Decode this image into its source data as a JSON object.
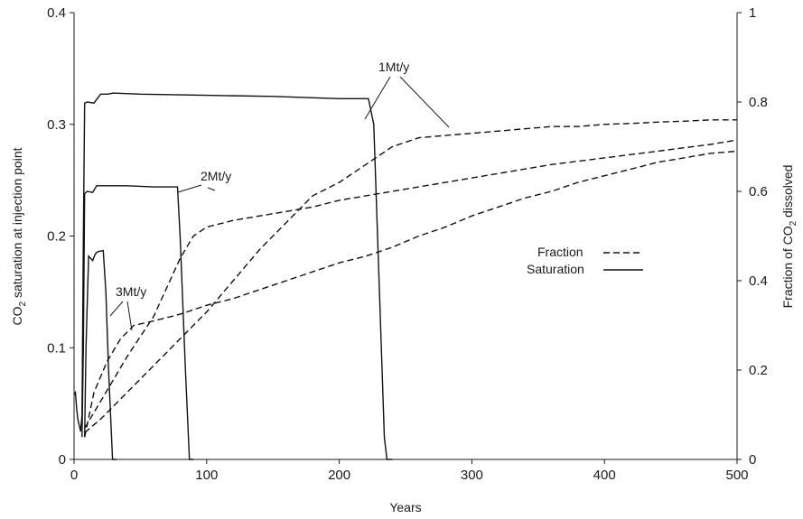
{
  "chart_data": {
    "type": "line",
    "xlabel": "Years",
    "ylabel_left": {
      "prefix": "CO",
      "sub": "2",
      "suffix": " saturation at injection point"
    },
    "ylabel_right": {
      "prefix": "Fraction of CO",
      "sub": "2",
      "suffix": " dissolved"
    },
    "xlim": [
      0,
      500
    ],
    "ylim_left": [
      0,
      0.4
    ],
    "ylim_right": [
      0,
      1
    ],
    "x_ticks": [
      "0",
      "100",
      "200",
      "300",
      "400",
      "500"
    ],
    "y_left_ticks": [
      "0",
      "0.1",
      "0.2",
      "0.3",
      "0.4"
    ],
    "y_right_ticks": [
      "0",
      "0.2",
      "0.4",
      "0.6",
      "0.8",
      "1"
    ],
    "grid": false,
    "legend": {
      "placement": "center-right",
      "entries": [
        {
          "label": "Fraction",
          "style": "dashed"
        },
        {
          "label": "Saturation",
          "style": "solid"
        }
      ]
    },
    "annotations": [
      {
        "text": "1Mt/y",
        "points_to": [
          "Saturation 1Mt/y",
          "Fraction 1Mt/y"
        ]
      },
      {
        "text": "2Mt/y",
        "points_to": [
          "Saturation 2Mt/y",
          "Fraction 2Mt/y"
        ]
      },
      {
        "text": "3Mt/y",
        "points_to": [
          "Saturation 3Mt/y",
          "Fraction 3Mt/y"
        ]
      }
    ],
    "series": [
      {
        "axis": "left",
        "style": "solid",
        "x": [
          0,
          1,
          2,
          3,
          4,
          5,
          6,
          7,
          8,
          10,
          15,
          20,
          25,
          30,
          50,
          100,
          150,
          200,
          222,
          226,
          232,
          234,
          236,
          240
        ],
        "y": [
          0.058,
          0.06,
          0.045,
          0.035,
          0.03,
          0.025,
          0.04,
          0.2,
          0.319,
          0.32,
          0.319,
          0.327,
          0.327,
          0.328,
          0.327,
          0.326,
          0.325,
          0.323,
          0.323,
          0.3,
          0.09,
          0.02,
          0,
          0
        ]
      },
      {
        "axis": "left",
        "style": "solid",
        "x": [
          6,
          7,
          8,
          10,
          14,
          17,
          20,
          40,
          60,
          70,
          78,
          80,
          84,
          87,
          90
        ],
        "y": [
          0.02,
          0.1,
          0.238,
          0.24,
          0.239,
          0.245,
          0.245,
          0.245,
          0.244,
          0.244,
          0.244,
          0.2,
          0.08,
          0,
          0
        ]
      },
      {
        "axis": "left",
        "style": "solid",
        "x": [
          8,
          9,
          11,
          14,
          16,
          18,
          22,
          24,
          26,
          29,
          32
        ],
        "y": [
          0.02,
          0.1,
          0.182,
          0.178,
          0.184,
          0.186,
          0.187,
          0.15,
          0.08,
          0,
          0
        ]
      },
      {
        "axis": "right",
        "style": "dashed",
        "x": [
          8,
          20,
          40,
          60,
          80,
          100,
          120,
          140,
          160,
          180,
          200,
          220,
          240,
          260,
          280,
          300,
          320,
          340,
          360,
          380,
          400,
          420,
          440,
          460,
          480,
          500
        ],
        "y": [
          0.06,
          0.09,
          0.15,
          0.21,
          0.27,
          0.33,
          0.4,
          0.47,
          0.53,
          0.59,
          0.62,
          0.66,
          0.7,
          0.72,
          0.725,
          0.73,
          0.735,
          0.74,
          0.745,
          0.745,
          0.75,
          0.752,
          0.755,
          0.757,
          0.76,
          0.76
        ]
      },
      {
        "axis": "right",
        "style": "dashed",
        "x": [
          8,
          20,
          40,
          60,
          80,
          90,
          100,
          120,
          140,
          160,
          180,
          200,
          240,
          280,
          320,
          360,
          400,
          440,
          480,
          500
        ],
        "y": [
          0.07,
          0.13,
          0.23,
          0.32,
          0.45,
          0.5,
          0.52,
          0.535,
          0.545,
          0.555,
          0.565,
          0.58,
          0.6,
          0.62,
          0.64,
          0.66,
          0.675,
          0.69,
          0.705,
          0.715
        ]
      },
      {
        "axis": "right",
        "style": "dashed",
        "x": [
          8,
          15,
          25,
          35,
          45,
          60,
          80,
          100,
          120,
          140,
          160,
          180,
          200,
          220,
          240,
          260,
          280,
          300,
          320,
          340,
          360,
          380,
          400,
          420,
          440,
          460,
          480,
          500
        ],
        "y": [
          0.05,
          0.15,
          0.22,
          0.27,
          0.3,
          0.31,
          0.325,
          0.345,
          0.36,
          0.38,
          0.4,
          0.42,
          0.44,
          0.455,
          0.475,
          0.5,
          0.52,
          0.545,
          0.565,
          0.585,
          0.6,
          0.62,
          0.635,
          0.65,
          0.665,
          0.675,
          0.685,
          0.69
        ]
      }
    ]
  }
}
